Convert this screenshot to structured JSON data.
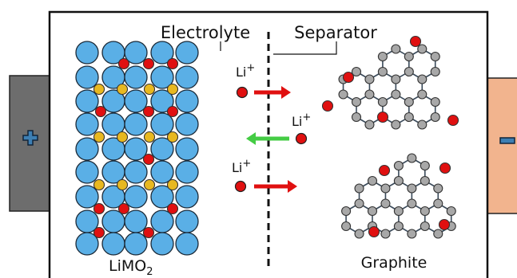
{
  "labels": {
    "electrolyte": "Electrolyte",
    "separator": "Separator",
    "cathode_base": "LiMO",
    "cathode_sub": "2",
    "anode": "Graphite",
    "ion": "Li",
    "ion_charge": "+",
    "plus_symbol": "+",
    "minus_symbol": "−"
  },
  "colors": {
    "cathode_terminal": "#6d6d6d",
    "anode_terminal": "#f2b48e",
    "terminal_symbol": "#3d7fb3",
    "oxide_atom": "#5aafe6",
    "metal_atom": "#e8b820",
    "lithium_ion": "#e01010",
    "carbon_atom": "#a8a8a8",
    "arrow_charge": "#e01010",
    "arrow_discharge": "#44cc44"
  },
  "icons": {
    "arrow": "right-arrow-icon",
    "plus": "plus-icon",
    "minus": "minus-icon"
  }
}
